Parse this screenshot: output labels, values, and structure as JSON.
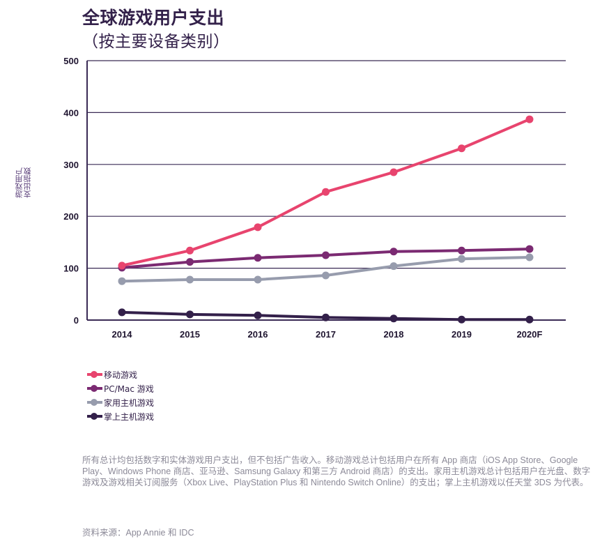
{
  "chart_data": {
    "type": "line",
    "title": "全球游戏用户支出",
    "subtitle": "（按主要设备类别）",
    "xlabel": "",
    "ylabel": "游戏用户支出指数",
    "ylabel_lines": [
      "游戏用户",
      "支出指数"
    ],
    "categories": [
      "2014",
      "2015",
      "2016",
      "2017",
      "2018",
      "2019",
      "2020F"
    ],
    "ylim": [
      0,
      500
    ],
    "yticks": [
      0,
      100,
      200,
      300,
      400,
      500
    ],
    "grid": true,
    "legend_position": "bottom-left",
    "series": [
      {
        "name": "移动游戏",
        "color": "#e8446e",
        "values": [
          105,
          134,
          179,
          247,
          285,
          331,
          387
        ]
      },
      {
        "name": "PC/Mac 游戏",
        "color": "#7b2a72",
        "values": [
          101,
          112,
          120,
          125,
          132,
          134,
          137
        ]
      },
      {
        "name": "家用主机游戏",
        "color": "#979cad",
        "values": [
          75,
          78,
          78,
          86,
          104,
          118,
          121
        ]
      },
      {
        "name": "掌上主机游戏",
        "color": "#33204a",
        "values": [
          15,
          11,
          9,
          5,
          3,
          1,
          1
        ]
      }
    ]
  },
  "colors": {
    "axis": "#3a2a55",
    "grid": "#3a2a55",
    "text": "#33214a",
    "note": "#8c8a98"
  },
  "footnote": "所有总计均包括数字和实体游戏用户支出，但不包括广告收入。移动游戏总计包括用户在所有 App 商店（iOS App Store、Google Play、Windows Phone 商店、亚马逊、Samsung Galaxy 和第三方 Android 商店）的支出。家用主机游戏总计包括用户在光盘、数字游戏及游戏相关订阅服务（Xbox Live、PlayStation Plus 和 Nintendo Switch Online）的支出；掌上主机游戏以任天堂 3DS 为代表。",
  "source": "资料来源：App Annie 和 IDC"
}
